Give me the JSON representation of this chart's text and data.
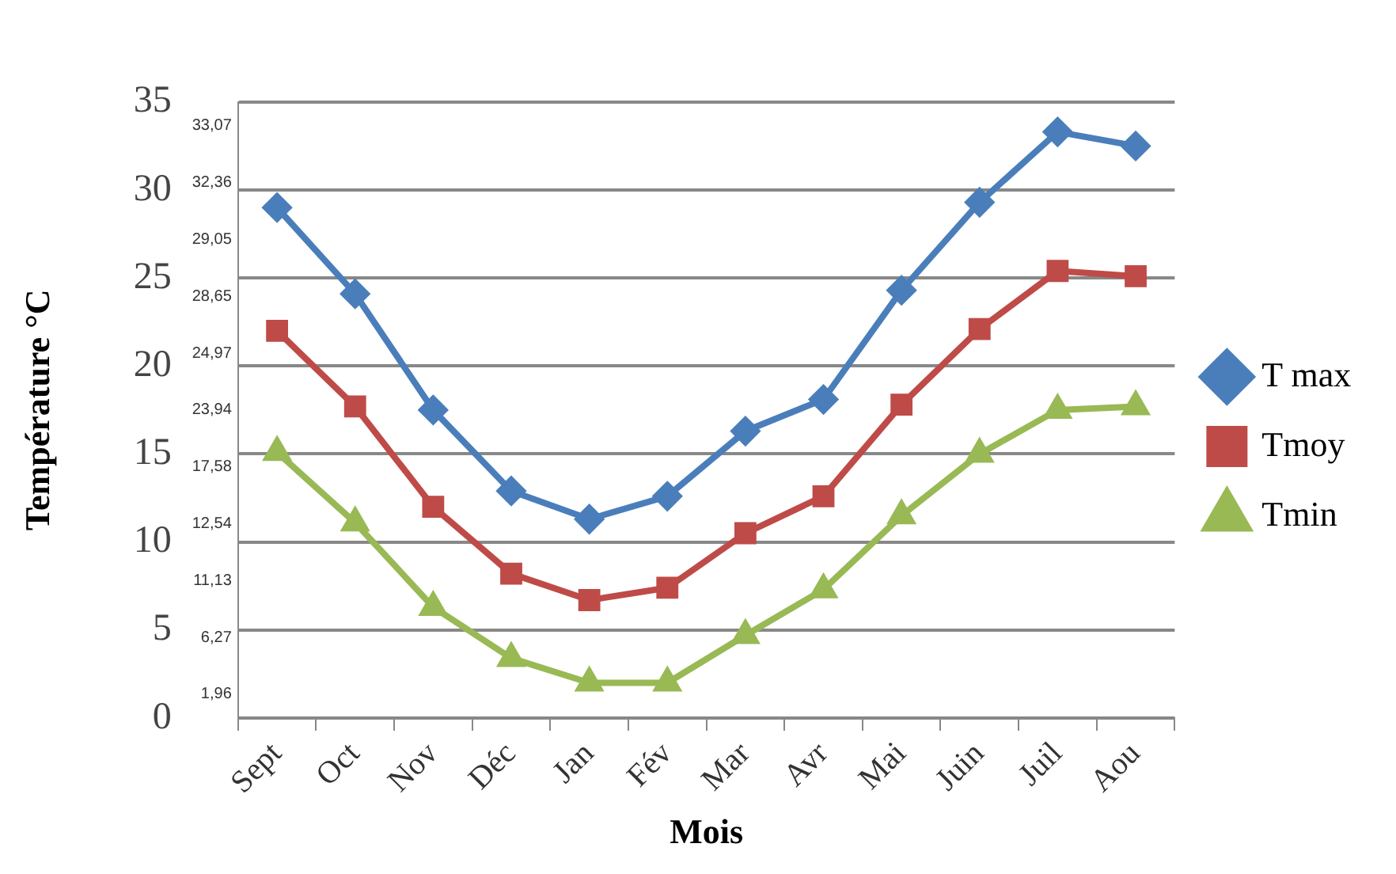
{
  "chart_data": {
    "type": "line",
    "xlabel": "Mois",
    "ylabel": "Température °C",
    "categories": [
      "Sept",
      "Oct",
      "Nov",
      "Déc",
      "Jan",
      "Fév",
      "Mar",
      "Avr",
      "Mai",
      "Juin",
      "Juil",
      "Aou"
    ],
    "series": [
      {
        "name": "T max",
        "color": "#4a7ebb",
        "marker": "diamond",
        "values": [
          29.0,
          24.1,
          17.5,
          12.9,
          11.3,
          12.6,
          16.3,
          18.1,
          24.3,
          29.3,
          33.3,
          32.5
        ]
      },
      {
        "name": "Tmoy",
        "color": "#be4b48",
        "marker": "square",
        "values": [
          22.0,
          17.7,
          12.0,
          8.2,
          6.7,
          7.4,
          10.5,
          12.6,
          17.8,
          22.1,
          25.4,
          25.1
        ]
      },
      {
        "name": "Tmin",
        "color": "#98b954",
        "marker": "triangle",
        "values": [
          15.1,
          11.1,
          6.3,
          3.4,
          2.0,
          2.0,
          4.7,
          7.3,
          11.5,
          15.0,
          17.5,
          17.7
        ]
      }
    ],
    "ylim": [
      0,
      35
    ],
    "yticks": [
      0,
      5,
      10,
      15,
      20,
      25,
      30,
      35
    ],
    "grid": "y",
    "legend": "right",
    "annotations": [
      "33,07",
      "32,36",
      "29,05",
      "28,65",
      "24,97",
      "23,94",
      "17,58",
      "12,54",
      "11,13",
      "6,27",
      "1,96"
    ]
  }
}
